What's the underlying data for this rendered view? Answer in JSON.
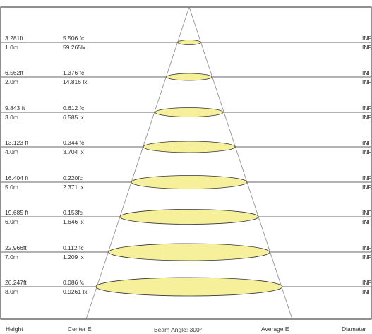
{
  "rows": [
    {
      "height_ft": "3.281ft",
      "fc": "5.506 fc",
      "height_m": "1.0m",
      "lx": "59.265lx",
      "avg_top": "INF",
      "avg_bottom": "INF"
    },
    {
      "height_ft": "6.562ft",
      "fc": "1.376 fc",
      "height_m": "2.0m",
      "lx": "14.816 lx",
      "avg_top": "INF",
      "avg_bottom": "INF"
    },
    {
      "height_ft": "9.843 ft",
      "fc": "0.612 fc",
      "height_m": "3.0m",
      "lx": "6.585 lx",
      "avg_top": "INF",
      "avg_bottom": "INF"
    },
    {
      "height_ft": "13.123 ft",
      "fc": "0.344 fc",
      "height_m": "4.0m",
      "lx": "3.704 lx",
      "avg_top": "INF",
      "avg_bottom": "INF"
    },
    {
      "height_ft": "16.404 ft",
      "fc": "0.220fc",
      "height_m": "5.0m",
      "lx": "2.371 lx",
      "avg_top": "INF",
      "avg_bottom": "INF"
    },
    {
      "height_ft": "19.685 ft",
      "fc": "0.153fc",
      "height_m": "6.0m",
      "lx": "1.646 lx",
      "avg_top": "INF",
      "avg_bottom": "INF"
    },
    {
      "height_ft": "22.966ft",
      "fc": "0.112 fc",
      "height_m": "7.0m",
      "lx": "1.209 lx",
      "avg_top": "INF",
      "avg_bottom": "INF"
    },
    {
      "height_ft": "26.247ft",
      "fc": "0.086 fc",
      "height_m": "8.0m",
      "lx": "0.9261 lx",
      "avg_top": "INF",
      "avg_bottom": "INF"
    }
  ],
  "footer": {
    "height": "Height",
    "center": "Center E",
    "beam": "Beam Angle: 300°",
    "average": "Average E",
    "diameter": "Diameter"
  },
  "colors": {
    "ellipse_fill": "#f7f09a",
    "line": "#333333",
    "border": "#222222"
  }
}
